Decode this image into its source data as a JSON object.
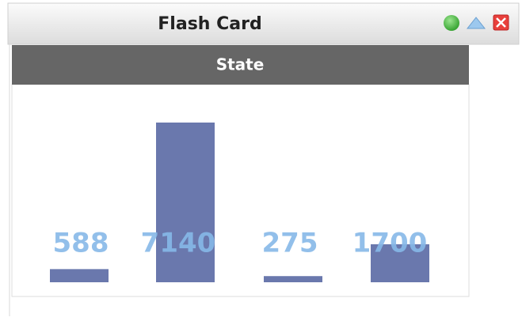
{
  "window": {
    "title": "Flash Card"
  },
  "chart_data": {
    "type": "bar",
    "title": "State",
    "values": [
      588,
      7140,
      275,
      1700
    ],
    "color": "#6a78ad",
    "label_color": "#86b8e8"
  }
}
